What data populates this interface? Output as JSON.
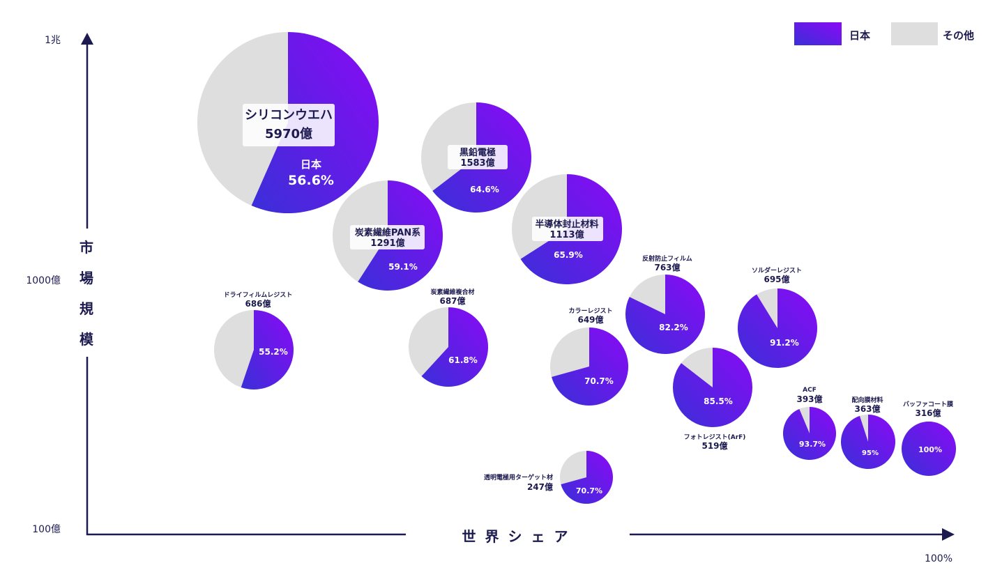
{
  "colors": {
    "japan_start": "#3a2fd8",
    "japan_end": "#8a0af5",
    "other": "#dedede",
    "axis": "#1c1a4f",
    "text": "#1c1a4f",
    "label_box": "#ffffff"
  },
  "chart_data": {
    "type": "bubble-pie",
    "xlabel": "世界シェア",
    "ylabel": "市場規模",
    "x_end_label": "100%",
    "y_tick_labels": [
      "1兆",
      "1000億",
      "100億"
    ],
    "y_scale": "log",
    "ylim": [
      100,
      10000
    ],
    "xlim_max": 100,
    "legend_position": "top-right",
    "legend": [
      {
        "name": "日本",
        "color_key": "japan"
      },
      {
        "name": "その他",
        "color_key": "other"
      }
    ],
    "value_unit": "億",
    "items": [
      {
        "name": "シリコンウエハ",
        "value": 5970,
        "value_text": "5970億",
        "japan_share": 56.6,
        "share_text": "56.6%",
        "share_prefix": "日本"
      },
      {
        "name": "黒鉛電極",
        "value": 1583,
        "value_text": "1583億",
        "japan_share": 64.6,
        "share_text": "64.6%"
      },
      {
        "name": "炭素繊維PAN系",
        "value": 1291,
        "value_text": "1291億",
        "japan_share": 59.1,
        "share_text": "59.1%"
      },
      {
        "name": "半導体封止材料",
        "value": 1113,
        "value_text": "1113億",
        "japan_share": 65.9,
        "share_text": "65.9%"
      },
      {
        "name": "ドライフィルムレジスト",
        "value": 686,
        "value_text": "686億",
        "japan_share": 55.2,
        "share_text": "55.2%"
      },
      {
        "name": "炭素繊維複合材",
        "value": 687,
        "value_text": "687億",
        "japan_share": 61.8,
        "share_text": "61.8%"
      },
      {
        "name": "カラーレジスト",
        "value": 649,
        "value_text": "649億",
        "japan_share": 70.7,
        "share_text": "70.7%"
      },
      {
        "name": "反射防止フィルム",
        "value": 763,
        "value_text": "763億",
        "japan_share": 82.2,
        "share_text": "82.2%"
      },
      {
        "name": "フォトレジスト(ArF)",
        "value": 519,
        "value_text": "519億",
        "japan_share": 85.5,
        "share_text": "85.5%"
      },
      {
        "name": "ソルダーレジスト",
        "value": 695,
        "value_text": "695億",
        "japan_share": 91.2,
        "share_text": "91.2%"
      },
      {
        "name": "ACF",
        "value": 393,
        "value_text": "393億",
        "japan_share": 93.7,
        "share_text": "93.7%"
      },
      {
        "name": "配向膜材料",
        "value": 363,
        "value_text": "363億",
        "japan_share": 95,
        "share_text": "95%"
      },
      {
        "name": "バッファコート膜",
        "value": 316,
        "value_text": "316億",
        "japan_share": 100,
        "share_text": "100%"
      },
      {
        "name": "透明電極用ターゲット材",
        "value": 247,
        "value_text": "247億",
        "japan_share": 70.7,
        "share_text": "70.7%"
      }
    ]
  }
}
